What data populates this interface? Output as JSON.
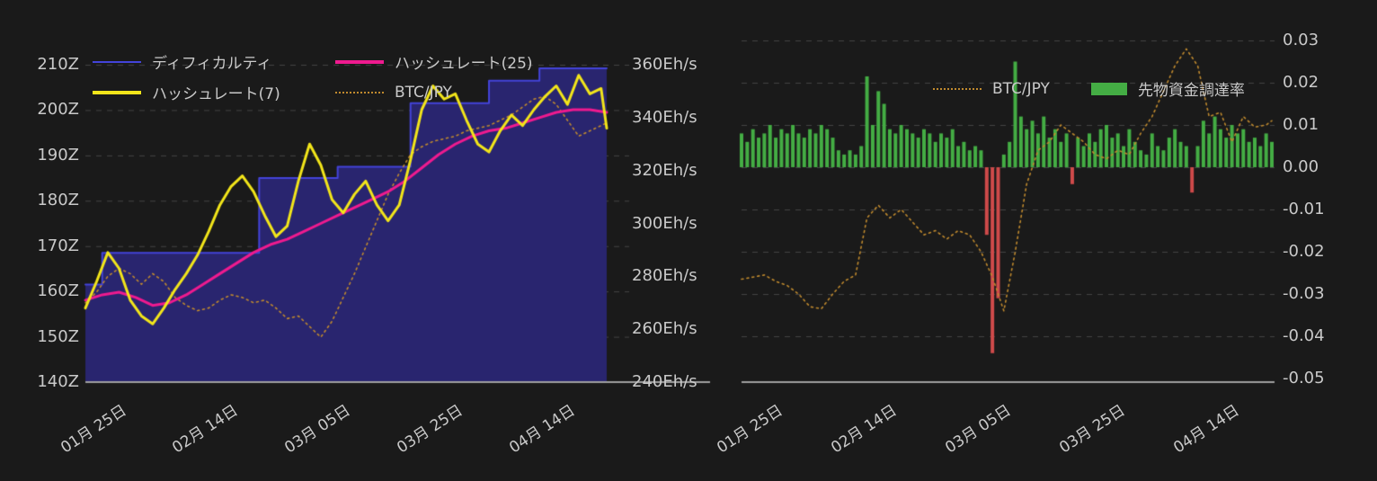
{
  "page": {
    "background": "#1a1a1a",
    "text_color": "#c9c9c9",
    "grid_color": "#454545",
    "axis_color": "#a0a0a0"
  },
  "chart_data": [
    {
      "id": "difficulty-hashrate-chart",
      "type": "mixed",
      "x_axis": {
        "tick_labels": [
          "01月 25日",
          "02月 14日",
          "03月 05日",
          "03月 25日",
          "04月 14日"
        ],
        "tick_days": [
          7,
          27,
          47,
          67,
          87
        ],
        "range_days": [
          0,
          93
        ]
      },
      "y_axis_left": {
        "unit": "Z",
        "range": [
          140,
          210
        ],
        "tick_values": [
          210,
          200,
          190,
          180,
          170,
          160,
          150,
          140
        ],
        "tick_labels": [
          "210Z",
          "200Z",
          "190Z",
          "180Z",
          "170Z",
          "160Z",
          "150Z",
          "140Z"
        ]
      },
      "y_axis_right": {
        "unit": "Eh/s",
        "range": [
          240,
          360
        ],
        "tick_values": [
          360,
          340,
          320,
          300,
          280,
          260,
          240
        ],
        "tick_labels": [
          "360Eh/s",
          "340Eh/s",
          "320Eh/s",
          "300Eh/s",
          "280Eh/s",
          "260Eh/s",
          "240Eh/s"
        ]
      },
      "series": [
        {
          "name": "ディフィカルティ",
          "type": "step_area",
          "axis": "left",
          "color": "#4343d9",
          "fill": "#29256f",
          "x": [
            0,
            3,
            31,
            45,
            58,
            72,
            81
          ],
          "values": [
            161.5,
            168.5,
            185,
            187.5,
            201.5,
            206.5,
            209.2
          ]
        },
        {
          "name": "ハッシュレート(25)",
          "type": "line",
          "axis": "right",
          "color": "#ef1a8f",
          "x": [
            0,
            3,
            6,
            9,
            12,
            15,
            18,
            21,
            24,
            27,
            30,
            33,
            36,
            39,
            42,
            45,
            48,
            51,
            54,
            57,
            60,
            63,
            66,
            69,
            72,
            75,
            78,
            81,
            84,
            87,
            90,
            93
          ],
          "values": [
            271,
            273,
            274,
            272,
            269,
            270,
            273,
            277,
            281,
            285,
            289,
            292,
            294,
            297,
            300,
            303,
            306,
            309,
            312,
            316,
            321,
            326,
            330,
            333,
            335,
            336,
            338,
            340,
            342,
            343,
            343,
            342
          ]
        },
        {
          "name": "ハッシュレート(7)",
          "type": "line",
          "axis": "right",
          "color": "#f2e51a",
          "x": [
            0,
            2,
            4,
            6,
            8,
            10,
            12,
            14,
            16,
            18,
            20,
            22,
            24,
            26,
            28,
            30,
            32,
            34,
            36,
            38,
            40,
            42,
            44,
            46,
            48,
            50,
            52,
            54,
            56,
            58,
            60,
            62,
            64,
            66,
            68,
            70,
            72,
            74,
            76,
            78,
            80,
            82,
            84,
            86,
            88,
            90,
            92,
            93
          ],
          "values": [
            268,
            278,
            289,
            283,
            271,
            265,
            262,
            268,
            275,
            281,
            288,
            297,
            307,
            314,
            318,
            312,
            303,
            295,
            299,
            316,
            330,
            322,
            309,
            304,
            311,
            316,
            307,
            301,
            307,
            324,
            343,
            352,
            347,
            349,
            339,
            330,
            327,
            335,
            341,
            337,
            343,
            348,
            352,
            345,
            356,
            349,
            351,
            336
          ]
        },
        {
          "name": "BTC/JPY",
          "type": "dotted_line",
          "axis": "right",
          "color": "#c08a2e",
          "x": [
            0,
            2,
            4,
            6,
            8,
            10,
            12,
            14,
            16,
            18,
            20,
            22,
            24,
            26,
            28,
            30,
            32,
            34,
            36,
            38,
            40,
            42,
            44,
            46,
            48,
            50,
            52,
            54,
            56,
            58,
            60,
            62,
            64,
            66,
            68,
            70,
            72,
            74,
            76,
            78,
            80,
            82,
            84,
            86,
            88,
            90,
            92,
            93
          ],
          "values": [
            270,
            274,
            280,
            283,
            281,
            277,
            281,
            278,
            272,
            269,
            267,
            268,
            271,
            273,
            272,
            270,
            271,
            268,
            264,
            265,
            261,
            257,
            263,
            272,
            281,
            291,
            301,
            311,
            319,
            326,
            329,
            331,
            332,
            333,
            335,
            336,
            337,
            339,
            341,
            344,
            347,
            348,
            345,
            339,
            333,
            335,
            337,
            338
          ]
        }
      ]
    },
    {
      "id": "funding-rate-chart",
      "type": "mixed",
      "x_axis": {
        "tick_labels": [
          "01月 25日",
          "02月 14日",
          "03月 05日",
          "03月 25日",
          "04月 14日"
        ],
        "tick_days": [
          7,
          27,
          47,
          67,
          87
        ],
        "range_days": [
          0,
          93
        ]
      },
      "y_axis_right": {
        "unit": "",
        "range": [
          -0.05,
          0.03
        ],
        "tick_values": [
          0.03,
          0.02,
          0.01,
          0,
          -0.01,
          -0.02,
          -0.03,
          -0.04,
          -0.05
        ],
        "tick_labels": [
          "0.03",
          "0.02",
          "0.01",
          "0.00",
          "-0.01",
          "-0.02",
          "-0.03",
          "-0.04",
          "-0.05"
        ]
      },
      "series": [
        {
          "name": "BTC/JPY",
          "type": "dotted_line",
          "color": "#c08a2e",
          "x": [
            0,
            2,
            4,
            6,
            8,
            10,
            12,
            14,
            16,
            18,
            20,
            22,
            24,
            26,
            28,
            30,
            32,
            34,
            36,
            38,
            40,
            42,
            44,
            46,
            48,
            50,
            52,
            54,
            56,
            58,
            60,
            62,
            64,
            66,
            68,
            70,
            72,
            74,
            76,
            78,
            80,
            82,
            84,
            86,
            88,
            90,
            92,
            93
          ],
          "values": [
            -0.0265,
            -0.026,
            -0.0255,
            -0.027,
            -0.028,
            -0.03,
            -0.033,
            -0.0335,
            -0.03,
            -0.027,
            -0.0255,
            -0.012,
            -0.009,
            -0.012,
            -0.01,
            -0.013,
            -0.016,
            -0.015,
            -0.017,
            -0.015,
            -0.016,
            -0.02,
            -0.026,
            -0.034,
            -0.02,
            -0.004,
            0.004,
            0.006,
            0.01,
            0.008,
            0.006,
            0.003,
            0.002,
            0.004,
            0.003,
            0.008,
            0.012,
            0.018,
            0.024,
            0.028,
            0.024,
            0.012,
            0.013,
            0.006,
            0.012,
            0.0095,
            0.01,
            0.011
          ]
        },
        {
          "name": "先物資金調達率",
          "type": "bar",
          "color_positive": "#44ad44",
          "color_negative": "#cf4a4a",
          "x_start": 0,
          "x_step": 1,
          "values": [
            0.008,
            0.006,
            0.009,
            0.007,
            0.008,
            0.01,
            0.007,
            0.009,
            0.008,
            0.01,
            0.008,
            0.007,
            0.009,
            0.008,
            0.01,
            0.009,
            0.007,
            0.004,
            0.003,
            0.004,
            0.003,
            0.005,
            0.0215,
            0.01,
            0.018,
            0.015,
            0.009,
            0.008,
            0.01,
            0.009,
            0.008,
            0.007,
            0.009,
            0.008,
            0.006,
            0.008,
            0.007,
            0.009,
            0.005,
            0.006,
            0.004,
            0.005,
            0.004,
            -0.016,
            -0.044,
            -0.031,
            0.003,
            0.006,
            0.025,
            0.012,
            0.009,
            0.011,
            0.008,
            0.012,
            0.007,
            0.009,
            0.006,
            0.008,
            -0.004,
            0.007,
            0.005,
            0.008,
            0.006,
            0.009,
            0.01,
            0.007,
            0.008,
            0.005,
            0.009,
            0.006,
            0.004,
            0.003,
            0.008,
            0.005,
            0.004,
            0.007,
            0.009,
            0.006,
            0.005,
            -0.006,
            0.005,
            0.011,
            0.008,
            0.012,
            0.009,
            0.007,
            0.01,
            0.008,
            0.009,
            0.006,
            0.007,
            0.005,
            0.008,
            0.006
          ]
        }
      ]
    }
  ]
}
